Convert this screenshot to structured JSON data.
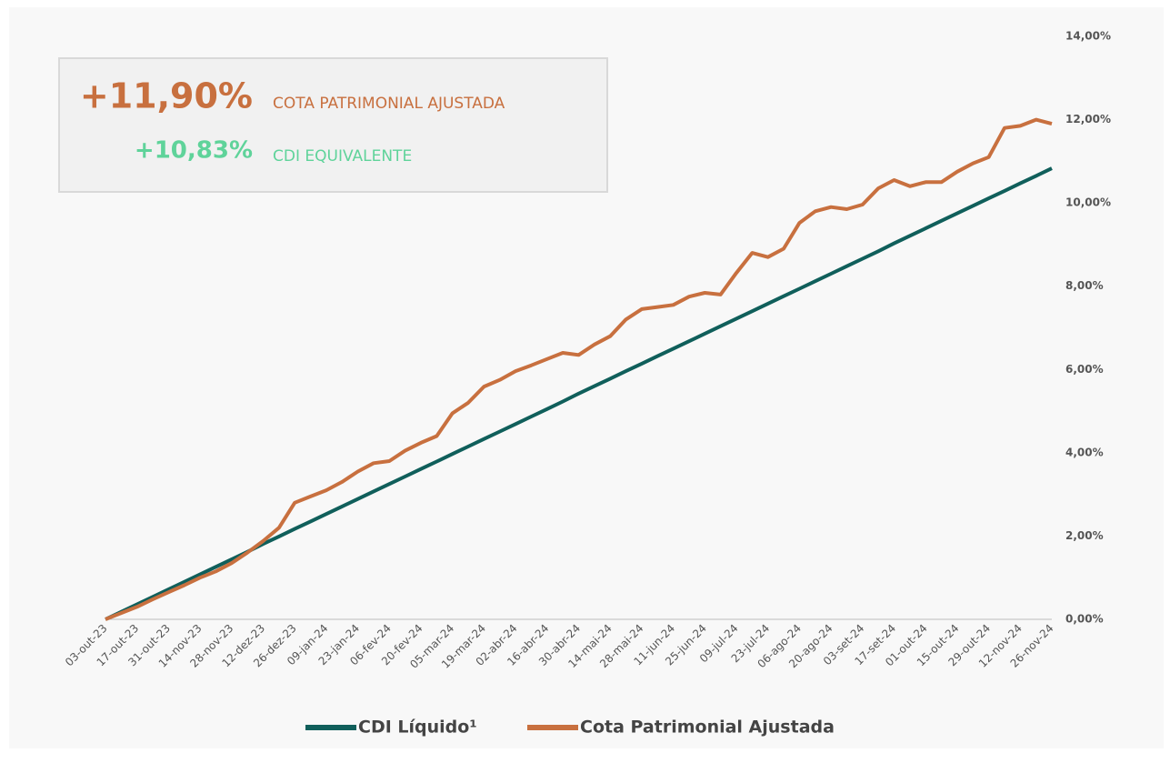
{
  "chart_data": {
    "type": "line",
    "summary": [
      {
        "value_text": "+11,90%",
        "label": "COTA PATRIMONIAL AJUSTADA",
        "color": "#c8703f"
      },
      {
        "value_text": "+10,83%",
        "label": "CDI EQUIVALENTE",
        "color": "#5fd39a"
      }
    ],
    "categories": [
      "03-out-23",
      null,
      "17-out-23",
      null,
      "31-out-23",
      null,
      "14-nov-23",
      null,
      "28-nov-23",
      null,
      "12-dez-23",
      null,
      "26-dez-23",
      null,
      "09-jan-24",
      null,
      "23-jan-24",
      null,
      "06-fev-24",
      null,
      "20-fev-24",
      null,
      "05-mar-24",
      null,
      "19-mar-24",
      null,
      "02-abr-24",
      null,
      "16-abr-24",
      null,
      "30-abr-24",
      null,
      "14-mai-24",
      null,
      "28-mai-24",
      null,
      "11-jun-24",
      null,
      "25-jun-24",
      null,
      "09-jul-24",
      null,
      "23-jul-24",
      null,
      "06-ago-24",
      null,
      "20-ago-24",
      null,
      "03-set-24",
      null,
      "17-set-24",
      null,
      "01-out-24",
      null,
      "15-out-24",
      null,
      "29-out-24",
      null,
      "12-nov-24",
      null,
      "26-nov-24"
    ],
    "series": [
      {
        "name": "CDI Líquido¹",
        "color": "#105f5b",
        "values": [
          0,
          0.18,
          0.36,
          0.54,
          0.72,
          0.9,
          1.08,
          1.26,
          1.44,
          1.62,
          1.81,
          1.99,
          2.17,
          2.35,
          2.53,
          2.71,
          2.89,
          3.07,
          3.25,
          3.43,
          3.61,
          3.79,
          3.97,
          4.15,
          4.33,
          4.51,
          4.69,
          4.87,
          5.05,
          5.23,
          5.42,
          5.6,
          5.78,
          5.96,
          6.14,
          6.32,
          6.5,
          6.68,
          6.86,
          7.04,
          7.22,
          7.4,
          7.58,
          7.76,
          7.94,
          8.12,
          8.3,
          8.48,
          8.66,
          8.84,
          9.03,
          9.21,
          9.39,
          9.57,
          9.75,
          9.93,
          10.11,
          10.29,
          10.47,
          10.65,
          10.83
        ]
      },
      {
        "name": "Cota Patrimonial Ajustada",
        "color": "#c8703f",
        "values": [
          0,
          0.15,
          0.3,
          0.48,
          0.65,
          0.82,
          1.0,
          1.15,
          1.35,
          1.6,
          1.88,
          2.2,
          2.8,
          2.95,
          3.1,
          3.3,
          3.55,
          3.75,
          3.8,
          4.05,
          4.24,
          4.4,
          4.95,
          5.2,
          5.59,
          5.75,
          5.96,
          6.1,
          6.25,
          6.4,
          6.35,
          6.6,
          6.8,
          7.2,
          7.45,
          7.5,
          7.55,
          7.75,
          7.84,
          7.8,
          8.32,
          8.8,
          8.7,
          8.9,
          9.52,
          9.8,
          9.9,
          9.85,
          9.96,
          10.35,
          10.55,
          10.4,
          10.5,
          10.5,
          10.75,
          10.95,
          11.1,
          11.8,
          11.85,
          12.0,
          11.9
        ]
      }
    ],
    "ylim": [
      0,
      14
    ],
    "yticks": [
      {
        "value": 0,
        "label": "0,00%"
      },
      {
        "value": 2,
        "label": "2,00%"
      },
      {
        "value": 4,
        "label": "4,00%"
      },
      {
        "value": 6,
        "label": "6,00%"
      },
      {
        "value": 8,
        "label": "8,00%"
      },
      {
        "value": 10,
        "label": "10,00%"
      },
      {
        "value": 12,
        "label": "12,00%"
      },
      {
        "value": 14,
        "label": "14,00%"
      }
    ],
    "grid": false,
    "legend": "bottom"
  }
}
